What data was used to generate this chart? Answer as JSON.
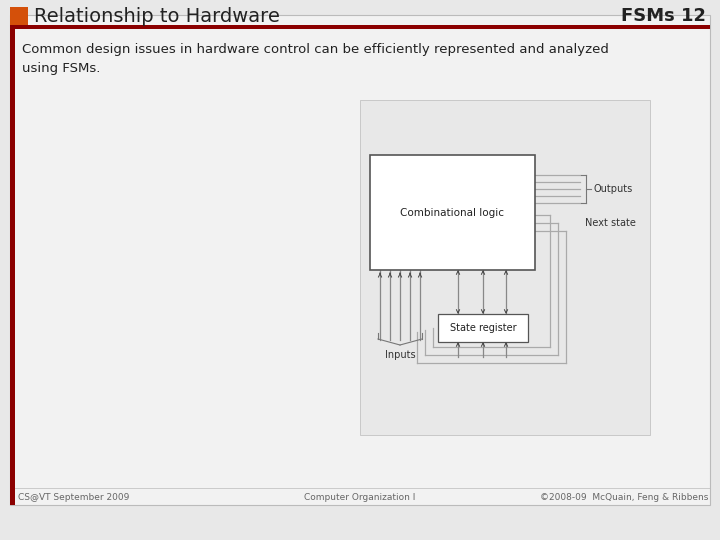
{
  "title_left": "Relationship to Hardware",
  "title_right": "FSMs 12",
  "subtitle": "Common design issues in hardware control can be efficiently represented and analyzed\nusing FSMs.",
  "footer_left": "CS@VT September 2009",
  "footer_center": "Computer Organization I",
  "footer_right": "©2008-09  McQuain, Feng & Ribbens",
  "bg_color": "#e8e8e8",
  "slide_bg": "#f0f0f0",
  "orange_rect": "#d4500a",
  "dark_red_bar": "#8b0000",
  "title_color": "#222222",
  "diagram_bg": "#e0e0e0",
  "box_fill": "#ffffff",
  "box_edge": "#555555",
  "wire_color": "#aaaaaa",
  "arrow_color": "#444444",
  "text_color": "#222222",
  "footer_color": "#666666"
}
